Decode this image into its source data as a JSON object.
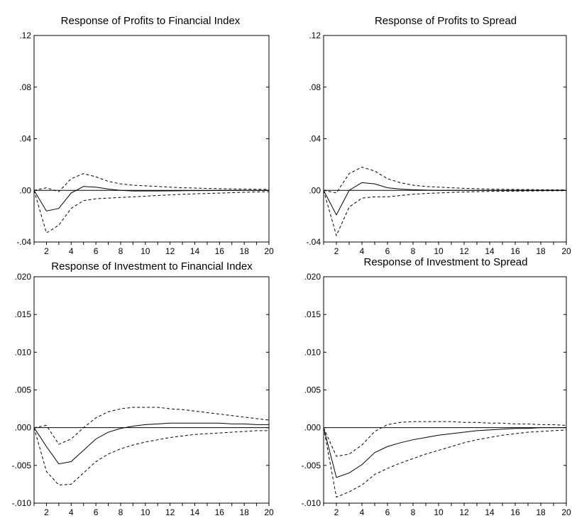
{
  "chart_data": [
    {
      "type": "line",
      "title": "Response of Profits to Financial Index",
      "ylim": [
        -0.04,
        0.12
      ],
      "yticks": [
        ".12",
        ".08",
        ".04",
        ".00",
        "-.04"
      ],
      "ytick_values": [
        0.12,
        0.08,
        0.04,
        0.0,
        -0.04
      ],
      "xlim": [
        1,
        20
      ],
      "xticks": [
        2,
        4,
        6,
        8,
        10,
        12,
        14,
        16,
        18,
        20
      ],
      "x": [
        1,
        2,
        3,
        4,
        5,
        6,
        7,
        8,
        9,
        10,
        11,
        12,
        13,
        14,
        15,
        16,
        17,
        18,
        19,
        20
      ],
      "zero_line": true,
      "series": [
        {
          "style": "solid",
          "values": [
            0,
            -0.016,
            -0.014,
            -0.002,
            0.003,
            0.0025,
            0.001,
            0,
            -0.0005,
            -0.0005,
            -0.0005,
            -0.0004,
            -0.0003,
            -0.0002,
            -0.0002,
            -0.0001,
            -0.0001,
            0,
            0,
            0
          ]
        },
        {
          "style": "dashed",
          "values": [
            0,
            0.002,
            -0.001,
            0.009,
            0.013,
            0.0105,
            0.007,
            0.005,
            0.004,
            0.0035,
            0.003,
            0.0025,
            0.002,
            0.0018,
            0.0015,
            0.0013,
            0.0011,
            0.001,
            0.0008,
            0.0007
          ]
        },
        {
          "style": "dashed",
          "values": [
            0,
            -0.033,
            -0.027,
            -0.014,
            -0.008,
            -0.0065,
            -0.006,
            -0.0055,
            -0.005,
            -0.0045,
            -0.004,
            -0.0035,
            -0.003,
            -0.0027,
            -0.0024,
            -0.0021,
            -0.0018,
            -0.0015,
            -0.0012,
            -0.001
          ]
        }
      ]
    },
    {
      "type": "line",
      "title": "Response of Profits to Spread",
      "ylim": [
        -0.04,
        0.12
      ],
      "yticks": [
        ".12",
        ".08",
        ".04",
        ".00",
        "-.04"
      ],
      "ytick_values": [
        0.12,
        0.08,
        0.04,
        0.0,
        -0.04
      ],
      "xlim": [
        1,
        20
      ],
      "xticks": [
        2,
        4,
        6,
        8,
        10,
        12,
        14,
        16,
        18,
        20
      ],
      "x": [
        1,
        2,
        3,
        4,
        5,
        6,
        7,
        8,
        9,
        10,
        11,
        12,
        13,
        14,
        15,
        16,
        17,
        18,
        19,
        20
      ],
      "zero_line": true,
      "series": [
        {
          "style": "solid",
          "values": [
            0,
            -0.019,
            0,
            0.006,
            0.005,
            0.002,
            0.001,
            0.0005,
            0.0002,
            0,
            0,
            0,
            0,
            0,
            0,
            0,
            0,
            0,
            0,
            0
          ]
        },
        {
          "style": "dashed",
          "values": [
            0,
            -0.002,
            0.013,
            0.018,
            0.015,
            0.009,
            0.006,
            0.004,
            0.003,
            0.0025,
            0.002,
            0.0016,
            0.0013,
            0.001,
            0.0008,
            0.0007,
            0.0006,
            0.0005,
            0.0004,
            0.0003
          ]
        },
        {
          "style": "dashed",
          "values": [
            0,
            -0.035,
            -0.013,
            -0.006,
            -0.005,
            -0.005,
            -0.004,
            -0.003,
            -0.0024,
            -0.002,
            -0.0016,
            -0.0013,
            -0.001,
            -0.0008,
            -0.0007,
            -0.0006,
            -0.0005,
            -0.0004,
            -0.0003,
            -0.0002
          ]
        }
      ]
    },
    {
      "type": "line",
      "title": "Response of Investment to Financial Index",
      "ylim": [
        -0.01,
        0.02
      ],
      "yticks": [
        ".020",
        ".015",
        ".010",
        ".005",
        ".000",
        "-.005",
        "-.010"
      ],
      "ytick_values": [
        0.02,
        0.015,
        0.01,
        0.005,
        0.0,
        -0.005,
        -0.01
      ],
      "xlim": [
        1,
        20
      ],
      "xticks": [
        2,
        4,
        6,
        8,
        10,
        12,
        14,
        16,
        18,
        20
      ],
      "x": [
        1,
        2,
        3,
        4,
        5,
        6,
        7,
        8,
        9,
        10,
        11,
        12,
        13,
        14,
        15,
        16,
        17,
        18,
        19,
        20
      ],
      "zero_line": true,
      "series": [
        {
          "style": "solid",
          "values": [
            0,
            -0.0025,
            -0.0048,
            -0.0045,
            -0.003,
            -0.0015,
            -0.0006,
            -0.0001,
            0.0002,
            0.0004,
            0.0005,
            0.0006,
            0.0006,
            0.0006,
            0.0006,
            0.0006,
            0.0005,
            0.0005,
            0.0004,
            0.0004
          ]
        },
        {
          "style": "dashed",
          "values": [
            0,
            0.0003,
            -0.0022,
            -0.0015,
            0,
            0.0013,
            0.0021,
            0.0025,
            0.0027,
            0.0027,
            0.0027,
            0.0025,
            0.0024,
            0.0022,
            0.002,
            0.0018,
            0.0016,
            0.0014,
            0.0012,
            0.001
          ]
        },
        {
          "style": "dashed",
          "values": [
            0,
            -0.0058,
            -0.0076,
            -0.0075,
            -0.006,
            -0.0045,
            -0.0035,
            -0.0028,
            -0.0023,
            -0.0019,
            -0.0016,
            -0.0013,
            -0.0011,
            -0.0009,
            -0.0008,
            -0.0007,
            -0.0006,
            -0.0005,
            -0.0004,
            -0.0004
          ]
        }
      ]
    },
    {
      "type": "line",
      "title": "Response of Investment to Spread",
      "ylim": [
        -0.01,
        0.02
      ],
      "yticks": [
        ".020",
        ".015",
        ".010",
        ".005",
        ".000",
        "-.005",
        "-.010"
      ],
      "ytick_values": [
        0.02,
        0.015,
        0.01,
        0.005,
        0.0,
        -0.005,
        -0.01
      ],
      "xlim": [
        1,
        20
      ],
      "xticks": [
        2,
        4,
        6,
        8,
        10,
        12,
        14,
        16,
        18,
        20
      ],
      "x": [
        1,
        2,
        3,
        4,
        5,
        6,
        7,
        8,
        9,
        10,
        11,
        12,
        13,
        14,
        15,
        16,
        17,
        18,
        19,
        20
      ],
      "zero_line": true,
      "series": [
        {
          "style": "solid",
          "values": [
            0,
            -0.0066,
            -0.006,
            -0.0049,
            -0.0033,
            -0.0025,
            -0.002,
            -0.0016,
            -0.0013,
            -0.001,
            -0.0008,
            -0.0006,
            -0.0004,
            -0.0003,
            -0.0002,
            -0.0001,
            -0.0001,
            0,
            0,
            0
          ]
        },
        {
          "style": "dashed",
          "values": [
            0,
            -0.0038,
            -0.0035,
            -0.0023,
            -0.0005,
            0.0004,
            0.0007,
            0.0008,
            0.0008,
            0.0008,
            0.0008,
            0.0007,
            0.0007,
            0.0006,
            0.0006,
            0.0005,
            0.0005,
            0.0004,
            0.0004,
            0.0003
          ]
        },
        {
          "style": "dashed",
          "values": [
            0,
            -0.0092,
            -0.0085,
            -0.0076,
            -0.0062,
            -0.0054,
            -0.0047,
            -0.0041,
            -0.0035,
            -0.003,
            -0.0025,
            -0.002,
            -0.0016,
            -0.0013,
            -0.001,
            -0.0008,
            -0.0006,
            -0.0005,
            -0.0004,
            -0.0003
          ]
        }
      ]
    }
  ]
}
